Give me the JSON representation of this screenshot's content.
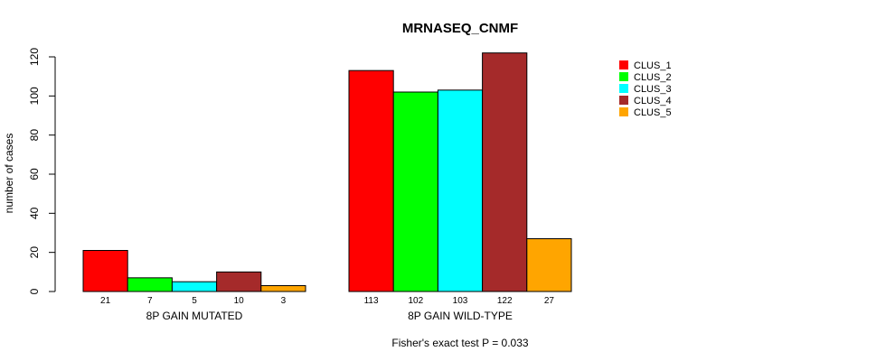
{
  "chart_data": {
    "type": "bar",
    "title": "MRNASEQ_CNMF",
    "ylabel": "number of cases",
    "xlabel": "",
    "ylim": [
      0,
      120
    ],
    "yticks": [
      0,
      20,
      40,
      60,
      80,
      100,
      120
    ],
    "groups": [
      "8P GAIN MUTATED",
      "8P GAIN WILD-TYPE"
    ],
    "series": [
      {
        "name": "CLUS_1",
        "color": "#ff0000",
        "values": [
          21,
          113
        ]
      },
      {
        "name": "CLUS_2",
        "color": "#00ff00",
        "values": [
          7,
          102
        ]
      },
      {
        "name": "CLUS_3",
        "color": "#00ffff",
        "values": [
          5,
          103
        ]
      },
      {
        "name": "CLUS_4",
        "color": "#a52a2a",
        "values": [
          10,
          122
        ]
      },
      {
        "name": "CLUS_5",
        "color": "#ffa500",
        "values": [
          3,
          27
        ]
      }
    ],
    "legend_position": "top-right",
    "footnote": "Fisher's exact test P = 0.033"
  }
}
